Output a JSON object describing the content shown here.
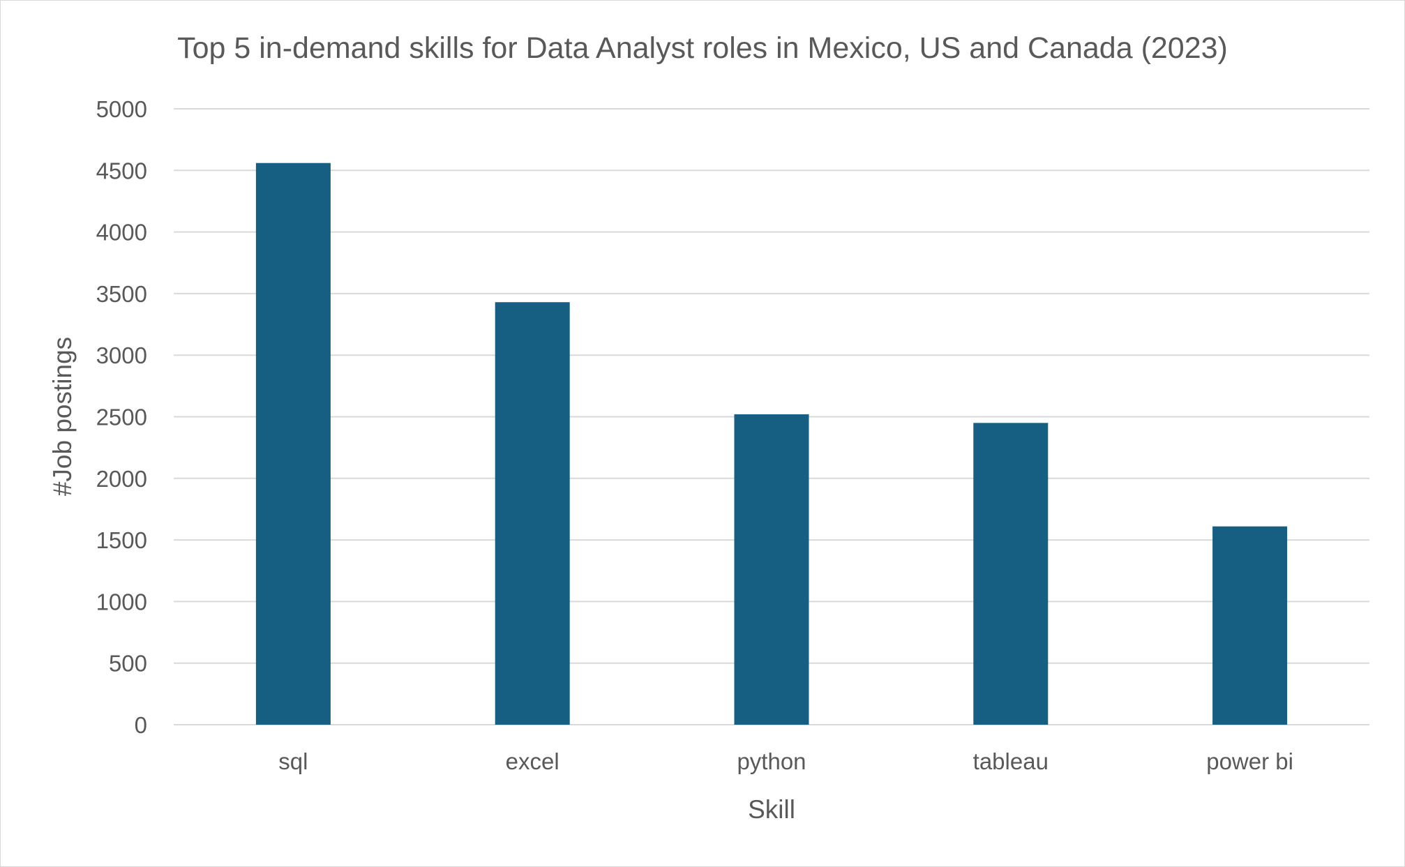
{
  "chart_data": {
    "type": "bar",
    "title": "Top 5 in-demand skills for Data Analyst roles in Mexico, US and Canada (2023)",
    "xlabel": "Skill",
    "ylabel": "#Job postings",
    "categories": [
      "sql",
      "excel",
      "python",
      "tableau",
      "power bi"
    ],
    "values": [
      4560,
      3430,
      2520,
      2450,
      1610
    ],
    "ylim": [
      0,
      5000
    ],
    "yticks": [
      "0",
      "500",
      "1000",
      "1500",
      "2000",
      "2500",
      "3000",
      "3500",
      "4000",
      "4500",
      "5000"
    ],
    "grid": true,
    "legend": "none",
    "bar_color": "#165f82",
    "grid_color": "#d9d9d9",
    "text_color": "#595959"
  }
}
